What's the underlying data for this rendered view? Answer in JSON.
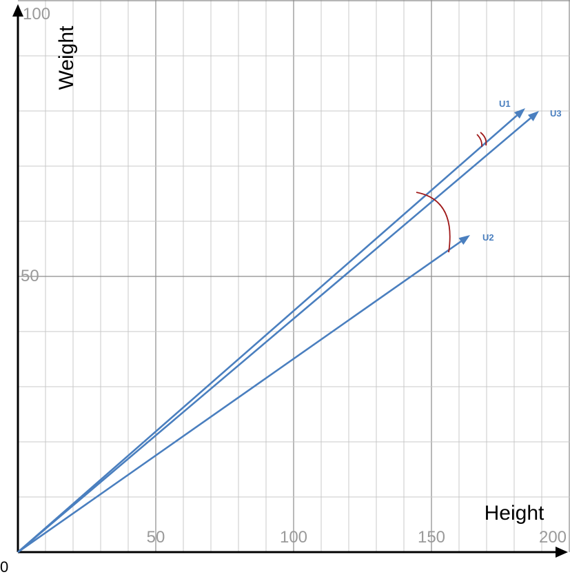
{
  "axes": {
    "x_label": "Height",
    "y_label": "Weight",
    "origin_label": "0",
    "x_ticks": [
      "50",
      "100",
      "150",
      "200"
    ],
    "y_ticks": [
      "50",
      "100"
    ]
  },
  "chart_data": {
    "type": "vector-diagram",
    "xlabel": "Height",
    "ylabel": "Weight",
    "xlim": [
      0,
      200
    ],
    "ylim": [
      0,
      100
    ],
    "grid": true,
    "vectors": [
      {
        "name": "U1",
        "x": 184,
        "y": 80.5
      },
      {
        "name": "U2",
        "x": 164,
        "y": 57.5
      },
      {
        "name": "U3",
        "x": 189,
        "y": 80
      }
    ],
    "angle_arcs": [
      "U1-U3",
      "U1-U2"
    ]
  },
  "colors": {
    "vector": "#4a7fbf",
    "arc": "#a01a1a",
    "grid_minor": "#c8c8c8",
    "grid_major": "#8a8a8a",
    "axis": "#000000",
    "tick": "#9a9a9a"
  }
}
